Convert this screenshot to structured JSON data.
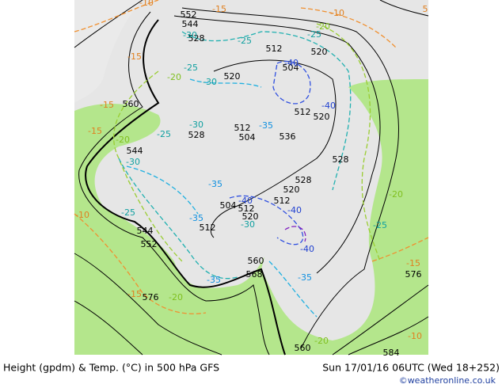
{
  "footer": {
    "title": "Height (gpdm) & Temp. (°C) in 500 hPa GFS",
    "datetime": "Sun 17/01/16 06UTC (Wed 18+252)",
    "credit": "©weatheronline.co.uk"
  },
  "height_labels": [
    "552",
    "544",
    "528",
    "512",
    "520",
    "504",
    "520",
    "512",
    "520",
    "560",
    "528",
    "512",
    "504",
    "536",
    "544",
    "528",
    "528",
    "520",
    "512",
    "504",
    "512",
    "520",
    "512",
    "544",
    "552",
    "560",
    "568",
    "576",
    "576",
    "584",
    "560"
  ],
  "temperature_labels": [
    "-10",
    "-15",
    "-10",
    "-20",
    "-25",
    "-30",
    "-25",
    "-15",
    "-25",
    "-30",
    "-40",
    "-20",
    "-15",
    "-25",
    "-30",
    "-35",
    "-20",
    "-15",
    "-40",
    "-30",
    "-35",
    "-40",
    "-35",
    "-30",
    "-40",
    "-40",
    "-20",
    "-25",
    "-10",
    "-25",
    "-15",
    "-20",
    "-35",
    "-35",
    "-15",
    "-10",
    "-20",
    "5"
  ]
}
